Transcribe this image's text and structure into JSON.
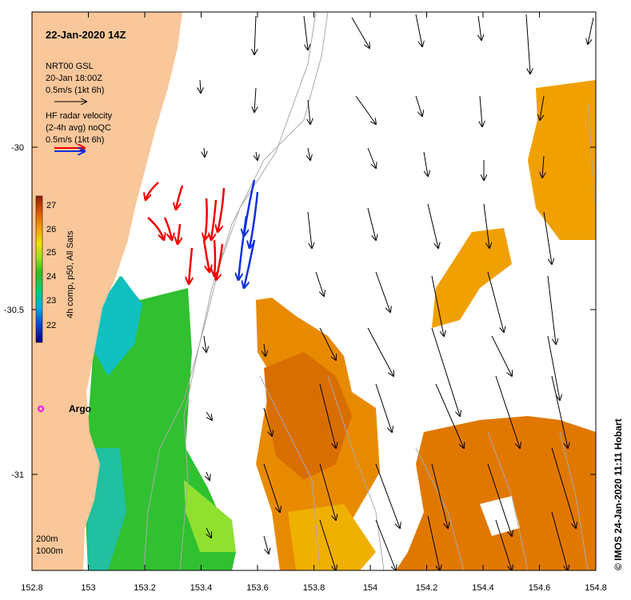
{
  "map": {
    "title": "22-Jan-2020 14Z",
    "model_label": "NRT00 GSL",
    "model_time": "20-Jan 18:00Z",
    "model_scale": "0.5m/s (1kt 6h)",
    "radar_label_1": "HF radar velocity",
    "radar_label_2": "(2-4h avg) noQC",
    "radar_scale": "0.5m/s (1kt 6h)",
    "argo_label": "Argo",
    "depth_label_1": "200m",
    "depth_label_2": "1000m",
    "credit": "© IMOS 24-Jan-2020 11:11 Hobart",
    "x_ticks": [
      "152.8",
      "153",
      "153.2",
      "153.4",
      "153.6",
      "153.8",
      "154",
      "154.2",
      "154.4",
      "154.6",
      "154.8"
    ],
    "y_ticks": [
      "-30",
      "-30.5",
      "-31"
    ],
    "colorbar": {
      "label": "4h comp, p50, All Sats",
      "ticks": [
        "27",
        "26",
        "25",
        "24",
        "23",
        "22"
      ],
      "min": 21.5,
      "max": 27.3
    },
    "colors": {
      "land": "#f9c79a",
      "radar_red": "#ee0000",
      "radar_blue": "#1030e0",
      "argo": "#ff00ff",
      "isobath": "#aaaaaa"
    }
  }
}
